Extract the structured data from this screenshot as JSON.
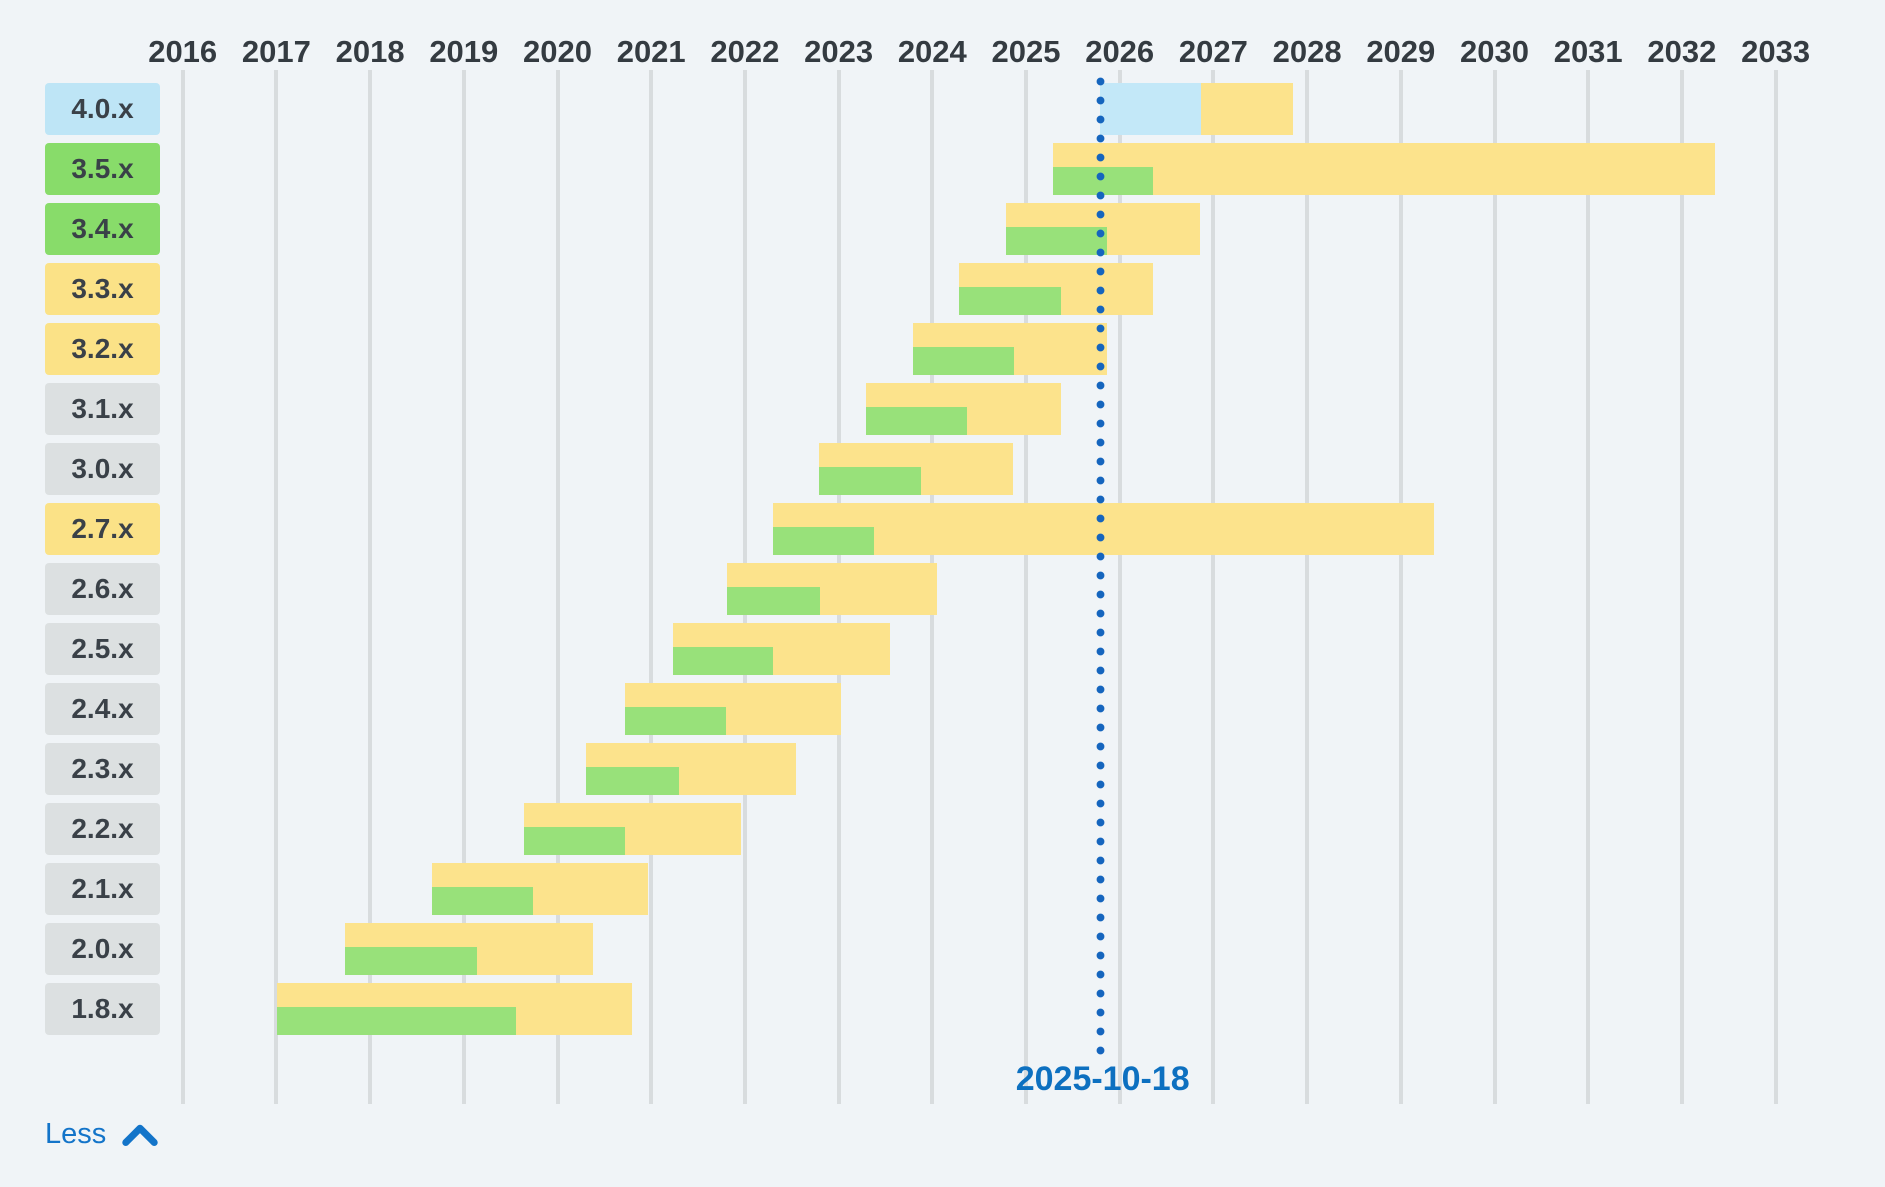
{
  "chart_data": {
    "type": "timeline",
    "x_axis": {
      "tick_years": [
        2016,
        2017,
        2018,
        2019,
        2020,
        2021,
        2022,
        2023,
        2024,
        2025,
        2026,
        2027,
        2028,
        2029,
        2030,
        2031,
        2032,
        2033
      ],
      "range": [
        2016,
        2033
      ],
      "grid": true
    },
    "today_marker": {
      "label": "2025-10-18",
      "position": 2025.797
    },
    "rows": [
      {
        "version": "4.0.x",
        "badge_color": "blue",
        "future": [
          2025.795,
          2026.87
        ],
        "security": [
          2026.87,
          2027.85
        ],
        "active": null
      },
      {
        "version": "3.5.x",
        "badge_color": "green",
        "future": null,
        "security": [
          2025.29,
          2032.35
        ],
        "active": [
          2025.29,
          2026.36
        ]
      },
      {
        "version": "3.4.x",
        "badge_color": "green",
        "future": null,
        "security": [
          2024.79,
          2026.86
        ],
        "active": [
          2024.79,
          2025.86
        ]
      },
      {
        "version": "3.3.x",
        "badge_color": "yellow",
        "future": null,
        "security": [
          2024.29,
          2026.36
        ],
        "active": [
          2024.29,
          2025.37
        ]
      },
      {
        "version": "3.2.x",
        "badge_color": "yellow",
        "future": null,
        "security": [
          2023.79,
          2025.86
        ],
        "active": [
          2023.79,
          2024.87
        ]
      },
      {
        "version": "3.1.x",
        "badge_color": "gray",
        "future": null,
        "security": [
          2023.29,
          2025.37
        ],
        "active": [
          2023.29,
          2024.37
        ]
      },
      {
        "version": "3.0.x",
        "badge_color": "gray",
        "future": null,
        "security": [
          2022.79,
          2024.86
        ],
        "active": [
          2022.79,
          2023.88
        ]
      },
      {
        "version": "2.7.x",
        "badge_color": "yellow",
        "future": null,
        "security": [
          2022.3,
          2029.35
        ],
        "active": [
          2022.3,
          2023.38
        ]
      },
      {
        "version": "2.6.x",
        "badge_color": "gray",
        "future": null,
        "security": [
          2021.81,
          2024.05
        ],
        "active": [
          2021.81,
          2022.8
        ]
      },
      {
        "version": "2.5.x",
        "badge_color": "gray",
        "future": null,
        "security": [
          2021.23,
          2023.55
        ],
        "active": [
          2021.23,
          2022.3
        ]
      },
      {
        "version": "2.4.x",
        "badge_color": "gray",
        "future": null,
        "security": [
          2020.72,
          2023.03
        ],
        "active": [
          2020.72,
          2021.8
        ]
      },
      {
        "version": "2.3.x",
        "badge_color": "gray",
        "future": null,
        "security": [
          2020.3,
          2022.55
        ],
        "active": [
          2020.3,
          2021.3
        ]
      },
      {
        "version": "2.2.x",
        "badge_color": "gray",
        "future": null,
        "security": [
          2019.64,
          2021.96
        ],
        "active": [
          2019.64,
          2020.72
        ]
      },
      {
        "version": "2.1.x",
        "badge_color": "gray",
        "future": null,
        "security": [
          2018.66,
          2020.97
        ],
        "active": [
          2018.66,
          2019.74
        ]
      },
      {
        "version": "2.0.x",
        "badge_color": "gray",
        "future": null,
        "security": [
          2017.73,
          2020.38
        ],
        "active": [
          2017.73,
          2019.14
        ]
      },
      {
        "version": "1.8.x",
        "badge_color": "gray",
        "future": null,
        "security": [
          2017.01,
          2020.8
        ],
        "active": [
          2017.01,
          2019.56
        ]
      }
    ]
  },
  "controls": {
    "less_label": "Less"
  },
  "colors": {
    "background": "#F0F4F7",
    "gridline": "#D8DCDE",
    "bar_security": "#FCE38C",
    "bar_active": "#98E17A",
    "bar_future": "#C3E8F8",
    "badge_blue": "#BEE5F6",
    "badge_green": "#88DC6A",
    "badge_yellow": "#FBE287",
    "badge_gray": "#DCE0E1",
    "accent_blue": "#1374C9",
    "today_line": "#1565BE",
    "today_label": "#0D70C0",
    "text_dark": "#343B41"
  }
}
